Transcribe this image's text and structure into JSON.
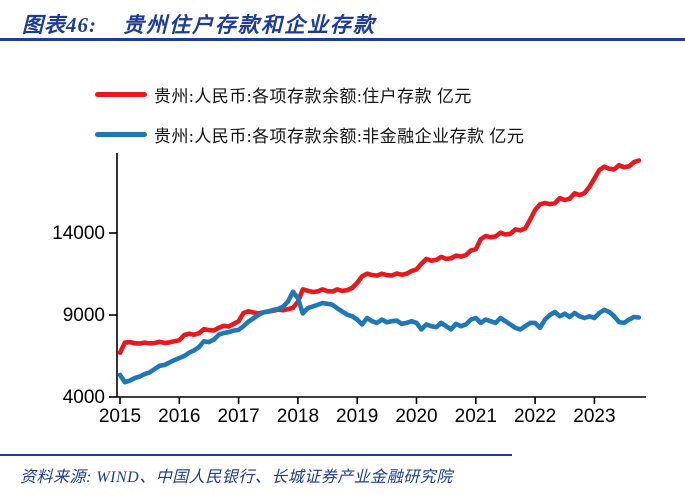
{
  "header": {
    "figure_label": "图表46:",
    "title": "贵州住户存款和企业存款"
  },
  "legend": [
    {
      "label": "贵州:人民币:各项存款余额:住户存款 亿元",
      "color": "#e7191f"
    },
    {
      "label": "贵州:人民币:各项存款余额:非金融企业存款 亿元",
      "color": "#1f77b4"
    }
  ],
  "footer": {
    "source": "资料来源: WIND、中国人民银行、长城证券产业金融研究院"
  },
  "colors": {
    "accent_blue": "#1e3c96",
    "series_red": "#e7191f",
    "series_blue": "#1f77b4",
    "axis": "#000000"
  },
  "chart_data": {
    "type": "line",
    "title": "贵州住户存款和企业存款",
    "unit": "亿元",
    "x_start": "2015-01",
    "x_end": "2023-10",
    "x_frequency": "monthly",
    "x_tick_labels": [
      "2015",
      "2016",
      "2017",
      "2018",
      "2019",
      "2020",
      "2021",
      "2022",
      "2023"
    ],
    "y_ticks": [
      4000,
      9000,
      14000
    ],
    "ylim": [
      4000,
      18800
    ],
    "grid": false,
    "legend_position": "top",
    "series": [
      {
        "name": "贵州:人民币:各项存款余额:住户存款",
        "color": "#e7191f",
        "values": [
          6700,
          7320,
          7350,
          7280,
          7260,
          7320,
          7270,
          7290,
          7360,
          7300,
          7330,
          7400,
          7460,
          7780,
          7860,
          7800,
          7890,
          8140,
          8080,
          8060,
          8220,
          8340,
          8300,
          8460,
          8620,
          9120,
          9230,
          9150,
          9100,
          9160,
          9210,
          9260,
          9330,
          9290,
          9360,
          9430,
          9820,
          10560,
          10480,
          10400,
          10440,
          10560,
          10450,
          10430,
          10560,
          10470,
          10520,
          10650,
          10960,
          11360,
          11520,
          11440,
          11400,
          11520,
          11430,
          11410,
          11530,
          11460,
          11520,
          11680,
          11780,
          12120,
          12420,
          12310,
          12360,
          12540,
          12420,
          12460,
          12620,
          12560,
          12660,
          12930,
          13010,
          13620,
          13820,
          13740,
          13790,
          14020,
          13910,
          13950,
          14220,
          14160,
          14280,
          14820,
          15400,
          15750,
          15830,
          15760,
          15820,
          16120,
          16010,
          16090,
          16420,
          16310,
          16430,
          16820,
          17320,
          17840,
          18040,
          17920,
          17880,
          18140,
          18010,
          18060,
          18320,
          18420
        ]
      },
      {
        "name": "贵州:人民币:各项存款余额:非金融企业存款",
        "color": "#1f77b4",
        "values": [
          5350,
          4900,
          5000,
          5150,
          5250,
          5400,
          5500,
          5700,
          5900,
          5950,
          6100,
          6250,
          6380,
          6500,
          6700,
          6850,
          7050,
          7400,
          7350,
          7500,
          7800,
          7900,
          7950,
          8050,
          8100,
          8320,
          8600,
          8800,
          9000,
          9160,
          9220,
          9310,
          9360,
          9510,
          9820,
          10420,
          10020,
          9100,
          9420,
          9520,
          9620,
          9730,
          9680,
          9620,
          9400,
          9210,
          9020,
          8920,
          8720,
          8420,
          8820,
          8620,
          8520,
          8720,
          8560,
          8620,
          8660,
          8460,
          8520,
          8620,
          8520,
          8120,
          8420,
          8320,
          8260,
          8520,
          8320,
          8120,
          8460,
          8320,
          8420,
          8720,
          8820,
          8520,
          8720,
          8620,
          8520,
          8820,
          8620,
          8420,
          8220,
          8120,
          8320,
          8520,
          8520,
          8220,
          8720,
          9000,
          9180,
          8920,
          9080,
          8880,
          9120,
          8920,
          8820,
          8920,
          8820,
          9120,
          9320,
          9180,
          8920,
          8570,
          8520,
          8720,
          8880,
          8850
        ]
      }
    ]
  }
}
